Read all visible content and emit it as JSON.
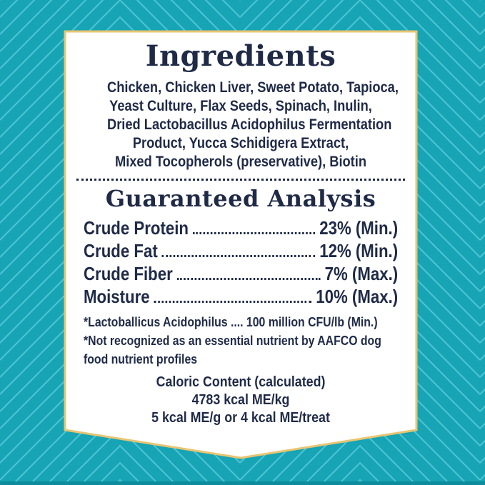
{
  "label": {
    "ingredients": {
      "title": "Ingredients",
      "lines": [
        "Chicken, Chicken Liver, Sweet Potato, Tapioca,",
        "Yeast Culture, Flax Seeds, Spinach, Inulin,",
        "Dried Lactobacillus Acidophilus Fermentation",
        "Product, Yucca Schidigera Extract,",
        "Mixed Tocopherols (preservative), Biotin"
      ]
    },
    "guaranteed_analysis": {
      "title": "Guaranteed Analysis",
      "rows": [
        {
          "name": "Crude Protein",
          "value": "23% (Min.)"
        },
        {
          "name": "Crude Fat",
          "value": "12% (Min.)"
        },
        {
          "name": "Crude Fiber",
          "value": "7% (Max.)"
        },
        {
          "name": "Moisture",
          "value": "10% (Max.)"
        }
      ],
      "footnotes": [
        "*Lactoballicus Acidophilus .... 100 million CFU/lb (Min.)",
        "*Not recognized as an essential nutrient by AAFCO dog",
        "food nutrient profiles"
      ]
    },
    "caloric_content": {
      "lines": [
        "Caloric Content (calculated)",
        "4783 kcal ME/kg",
        "5 kcal ME/g or 4 kcal ME/treat"
      ]
    },
    "colors": {
      "background_teal": "#17A4B4",
      "pattern_line_teal": "#4EC5D5",
      "border_gold": "#E7C573",
      "text_navy": "#1F2A47",
      "panel_white": "#FFFFFF"
    }
  }
}
